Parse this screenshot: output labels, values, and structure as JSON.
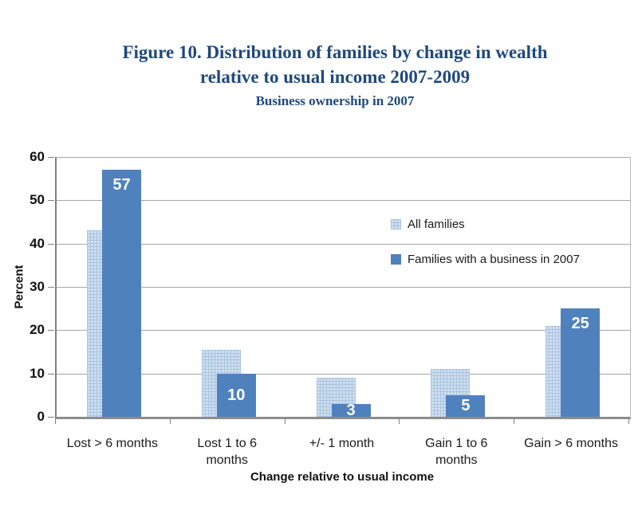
{
  "figure": {
    "title_line1": "Figure 10.  Distribution of families by change in wealth",
    "title_line2": "relative to usual income 2007-2009",
    "subtitle": "Business ownership in 2007",
    "title_color": "#1f497d"
  },
  "chart_data": {
    "type": "bar",
    "title": "Figure 10.  Distribution of families by change in wealth relative to usual income 2007-2009",
    "subtitle": "Business ownership in 2007",
    "categories": [
      "Lost > 6 months",
      "Lost 1 to 6\nmonths",
      "+/- 1 month",
      "Gain 1 to 6\nmonths",
      "Gain > 6 months"
    ],
    "series": [
      {
        "name": "All families",
        "values": [
          43,
          15.5,
          9,
          11,
          21
        ],
        "style": "patterned",
        "color": "#cfdeef",
        "pattern_line_color": "#a9c4e1",
        "labels_shown": false
      },
      {
        "name": "Families with a business in 2007",
        "values": [
          57,
          10,
          3,
          5,
          25
        ],
        "style": "solid",
        "color": "#4f81bd",
        "labels_shown": true
      }
    ],
    "xlabel": "Change relative to usual income",
    "ylabel": "Percent",
    "ylim": [
      0,
      60
    ],
    "yticks": [
      0,
      10,
      20,
      30,
      40,
      50,
      60
    ],
    "grid": "horizontal",
    "gridline_color": "#a6a6a6",
    "legend_position": "inside-center-right"
  }
}
